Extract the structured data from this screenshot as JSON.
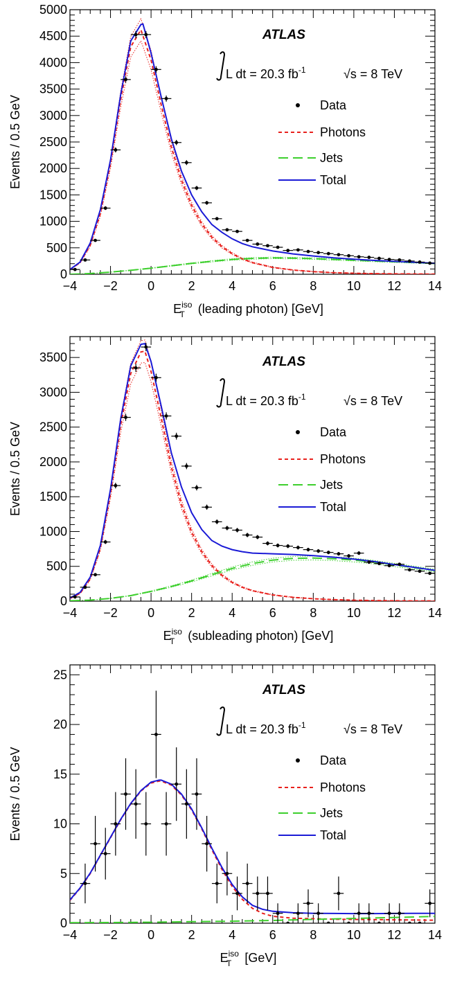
{
  "chart_data": [
    {
      "type": "line",
      "xlabel": "(leading photon) [GeV]",
      "xlabel_symbol": "E",
      "xlabel_sup": "iso",
      "xlabel_sub": "T",
      "ylabel": "Events / 0.5 GeV",
      "xlim": [
        -4,
        14
      ],
      "ylim": [
        0,
        5000
      ],
      "xticks": [
        "−4",
        "−2",
        "0",
        "2",
        "4",
        "6",
        "8",
        "10",
        "12",
        "14"
      ],
      "yticks": [
        "0",
        "500",
        "1000",
        "1500",
        "2000",
        "2500",
        "3000",
        "3500",
        "4000",
        "4500",
        "5000"
      ],
      "ytick_values": [
        0,
        500,
        1000,
        1500,
        2000,
        2500,
        3000,
        3500,
        4000,
        4500,
        5000
      ],
      "annotation": {
        "experiment": "ATLAS",
        "lumi": "L dt = 20.3 fb",
        "lumi_sup": "-1",
        "energy": "√s = 8 TeV"
      },
      "legend": [
        {
          "label": "Data",
          "style": "marker"
        },
        {
          "label": "Photons",
          "style": "short-dash",
          "color": "#e8201c"
        },
        {
          "label": "Jets",
          "style": "long-dash",
          "color": "#3ccf2c"
        },
        {
          "label": "Total",
          "style": "solid",
          "color": "#1a1ad6"
        }
      ],
      "legend_position": "top-right",
      "series": [
        {
          "name": "Data",
          "x": [
            -3.75,
            -3.25,
            -2.75,
            -2.25,
            -1.75,
            -1.25,
            -0.75,
            -0.25,
            0.25,
            0.75,
            1.25,
            1.75,
            2.25,
            2.75,
            3.25,
            3.75,
            4.25,
            4.75,
            5.25,
            5.75,
            6.25,
            6.75,
            7.25,
            7.75,
            8.25,
            8.75,
            9.25,
            9.75,
            10.25,
            10.75,
            11.25,
            11.75,
            12.25,
            12.75,
            13.25,
            13.75
          ],
          "y": [
            90,
            270,
            640,
            1250,
            2350,
            3680,
            4530,
            4530,
            3870,
            3320,
            2490,
            2110,
            1630,
            1350,
            1050,
            840,
            810,
            640,
            570,
            540,
            510,
            450,
            460,
            430,
            410,
            390,
            370,
            350,
            330,
            320,
            300,
            280,
            270,
            250,
            230,
            210
          ],
          "yerr": [
            10,
            16,
            25,
            35,
            48,
            60,
            67,
            67,
            62,
            58,
            50,
            46,
            40,
            37,
            32,
            29,
            28,
            25,
            24,
            23,
            23,
            21,
            21,
            21,
            20,
            20,
            19,
            19,
            18,
            18,
            17,
            17,
            16,
            16,
            15,
            15
          ]
        },
        {
          "name": "Photons",
          "x": [
            -4,
            -3.5,
            -3,
            -2.5,
            -2,
            -1.5,
            -1,
            -0.5,
            0,
            0.5,
            1,
            1.5,
            2,
            2.5,
            3,
            3.5,
            4,
            4.5,
            5,
            6,
            7,
            8,
            9,
            10,
            11,
            12,
            13,
            14
          ],
          "y": [
            90,
            220,
            550,
            1150,
            2100,
            3300,
            4300,
            4620,
            4050,
            3200,
            2400,
            1780,
            1300,
            950,
            700,
            520,
            390,
            290,
            220,
            130,
            80,
            50,
            30,
            20,
            12,
            8,
            5,
            3
          ]
        },
        {
          "name": "Jets",
          "x": [
            -4,
            -3,
            -2,
            -1,
            0,
            1,
            2,
            3,
            4,
            5,
            6,
            7,
            8,
            9,
            10,
            11,
            12,
            13,
            14
          ],
          "y": [
            0,
            15,
            40,
            75,
            115,
            160,
            205,
            245,
            280,
            300,
            310,
            305,
            295,
            280,
            265,
            250,
            235,
            220,
            205
          ]
        },
        {
          "name": "Total",
          "x": [
            -4,
            -3.5,
            -3,
            -2.5,
            -2,
            -1.5,
            -1,
            -0.5,
            -0.4,
            0,
            0.5,
            1,
            1.5,
            2,
            2.5,
            3,
            3.5,
            4,
            4.5,
            5,
            6,
            7,
            8,
            9,
            10,
            11,
            12,
            13,
            14
          ],
          "y": [
            90,
            230,
            590,
            1220,
            2160,
            3390,
            4410,
            4720,
            4730,
            4180,
            3350,
            2560,
            1950,
            1500,
            1180,
            940,
            790,
            670,
            580,
            520,
            440,
            385,
            345,
            310,
            285,
            262,
            243,
            225,
            208
          ]
        }
      ]
    },
    {
      "type": "line",
      "xlabel": "(subleading photon) [GeV]",
      "xlabel_symbol": "E",
      "xlabel_sup": "iso",
      "xlabel_sub": "T",
      "ylabel": "Events / 0.5 GeV",
      "xlim": [
        -4,
        14
      ],
      "ylim": [
        0,
        3800
      ],
      "xticks": [
        "−4",
        "−2",
        "0",
        "2",
        "4",
        "6",
        "8",
        "10",
        "12",
        "14"
      ],
      "yticks": [
        "0",
        "500",
        "1000",
        "1500",
        "2000",
        "2500",
        "3000",
        "3500"
      ],
      "ytick_values": [
        0,
        500,
        1000,
        1500,
        2000,
        2500,
        3000,
        3500
      ],
      "annotation": {
        "experiment": "ATLAS",
        "lumi": "L dt = 20.3 fb",
        "lumi_sup": "-1",
        "energy": "√s = 8 TeV"
      },
      "legend": [
        {
          "label": "Data",
          "style": "marker"
        },
        {
          "label": "Photons",
          "style": "short-dash",
          "color": "#e8201c"
        },
        {
          "label": "Jets",
          "style": "long-dash",
          "color": "#3ccf2c"
        },
        {
          "label": "Total",
          "style": "solid",
          "color": "#1a1ad6"
        }
      ],
      "legend_position": "top-right",
      "series": [
        {
          "name": "Data",
          "x": [
            -3.75,
            -3.25,
            -2.75,
            -2.25,
            -1.75,
            -1.25,
            -0.75,
            -0.25,
            0.25,
            0.75,
            1.25,
            1.75,
            2.25,
            2.75,
            3.25,
            3.75,
            4.25,
            4.75,
            5.25,
            5.75,
            6.25,
            6.75,
            7.25,
            7.75,
            8.25,
            8.75,
            9.25,
            9.75,
            10.25,
            10.75,
            11.25,
            11.75,
            12.25,
            12.75,
            13.25,
            13.75
          ],
          "y": [
            60,
            200,
            380,
            850,
            1660,
            2640,
            3350,
            3650,
            3210,
            2660,
            2370,
            1940,
            1630,
            1350,
            1140,
            1050,
            1020,
            950,
            920,
            830,
            800,
            790,
            770,
            740,
            720,
            700,
            680,
            650,
            690,
            560,
            540,
            510,
            530,
            450,
            430,
            400
          ],
          "yerr": [
            8,
            14,
            20,
            29,
            41,
            51,
            58,
            60,
            57,
            52,
            49,
            44,
            40,
            37,
            34,
            32,
            32,
            31,
            30,
            29,
            28,
            28,
            28,
            27,
            27,
            26,
            26,
            25,
            26,
            24,
            23,
            23,
            23,
            21,
            21,
            20
          ]
        },
        {
          "name": "Photons",
          "x": [
            -4,
            -3.5,
            -3,
            -2.5,
            -2,
            -1.5,
            -1,
            -0.5,
            -0.3,
            0,
            0.5,
            1,
            1.5,
            2,
            2.5,
            3,
            3.5,
            4,
            4.5,
            5,
            6,
            7,
            8,
            9,
            10,
            11,
            12,
            13,
            14
          ],
          "y": [
            40,
            110,
            320,
            760,
            1550,
            2530,
            3270,
            3580,
            3590,
            3300,
            2630,
            1930,
            1390,
            990,
            710,
            510,
            370,
            270,
            200,
            150,
            90,
            55,
            35,
            22,
            14,
            9,
            6,
            4,
            3
          ]
        },
        {
          "name": "Jets",
          "x": [
            -4,
            -3,
            -2,
            -1,
            0,
            1,
            2,
            3,
            4,
            5,
            6,
            7,
            8,
            9,
            10,
            11,
            12,
            13,
            14
          ],
          "y": [
            5,
            15,
            40,
            80,
            140,
            210,
            290,
            380,
            470,
            540,
            590,
            615,
            620,
            610,
            590,
            560,
            520,
            480,
            440
          ]
        },
        {
          "name": "Total",
          "x": [
            -4,
            -3.5,
            -3,
            -2.5,
            -2,
            -1.5,
            -1,
            -0.5,
            -0.3,
            0,
            0.5,
            1,
            1.5,
            2,
            2.5,
            3,
            3.5,
            4,
            4.5,
            5,
            6,
            7,
            8,
            9,
            10,
            11,
            12,
            13,
            14
          ],
          "y": [
            45,
            125,
            345,
            800,
            1610,
            2610,
            3380,
            3690,
            3700,
            3440,
            2800,
            2130,
            1640,
            1270,
            1030,
            870,
            790,
            740,
            710,
            690,
            680,
            670,
            655,
            632,
            604,
            569,
            526,
            484,
            443
          ]
        }
      ]
    },
    {
      "type": "line",
      "xlabel": "[GeV]",
      "xlabel_symbol": "E",
      "xlabel_sup": "iso",
      "xlabel_sub": "T",
      "ylabel": "Events / 0.5 GeV",
      "xlim": [
        -4,
        14
      ],
      "ylim": [
        0,
        26
      ],
      "xticks": [
        "−4",
        "−2",
        "0",
        "2",
        "4",
        "6",
        "8",
        "10",
        "12",
        "14"
      ],
      "yticks": [
        "0",
        "5",
        "10",
        "15",
        "20",
        "25"
      ],
      "ytick_values": [
        0,
        5,
        10,
        15,
        20,
        25
      ],
      "annotation": {
        "experiment": "ATLAS",
        "lumi": "L dt = 20.3 fb",
        "lumi_sup": "-1",
        "energy": "√s = 8 TeV"
      },
      "legend": [
        {
          "label": "Data",
          "style": "marker"
        },
        {
          "label": "Photons",
          "style": "short-dash",
          "color": "#e8201c"
        },
        {
          "label": "Jets",
          "style": "long-dash",
          "color": "#3ccf2c"
        },
        {
          "label": "Total",
          "style": "solid",
          "color": "#1a1ad6"
        }
      ],
      "legend_position": "top-right",
      "series": [
        {
          "name": "Data",
          "x": [
            -3.25,
            -2.75,
            -2.25,
            -1.75,
            -1.25,
            -0.75,
            -0.25,
            0.25,
            0.75,
            1.25,
            1.75,
            2.25,
            2.75,
            3.25,
            3.75,
            4.25,
            4.75,
            5.25,
            5.75,
            6.25,
            6.75,
            7.25,
            7.75,
            8.25,
            8.75,
            9.25,
            9.75,
            10.25,
            10.75,
            11.25,
            11.75,
            12.25,
            12.75,
            13.25,
            13.75
          ],
          "y": [
            4,
            8,
            7,
            10,
            13,
            12,
            10,
            19,
            10,
            14,
            12,
            13,
            8,
            4,
            5,
            3,
            4,
            3,
            3,
            1,
            0,
            1,
            2,
            1,
            0,
            3,
            0,
            1,
            1,
            0,
            1,
            1,
            0,
            0,
            2
          ],
          "yerr": [
            2,
            2.8,
            2.6,
            3.2,
            3.6,
            3.5,
            3.2,
            4.4,
            3.2,
            3.7,
            3.5,
            3.6,
            2.8,
            2,
            2.2,
            1.7,
            2,
            1.7,
            1.7,
            1,
            0,
            1,
            1.4,
            1,
            0,
            1.7,
            0,
            1,
            1,
            0,
            1,
            1,
            0,
            0,
            1.4
          ]
        },
        {
          "name": "Photons",
          "x": [
            -4,
            -3.5,
            -3,
            -2.5,
            -2,
            -1.5,
            -1,
            -0.5,
            0,
            0.4,
            0.5,
            1,
            1.5,
            2,
            2.5,
            3,
            3.5,
            4,
            4.5,
            5,
            5.5,
            6,
            7,
            8,
            9,
            10,
            11,
            12,
            13,
            14
          ],
          "y": [
            2.3,
            3.5,
            5.0,
            6.8,
            8.6,
            10.4,
            12.0,
            13.3,
            14.1,
            14.3,
            14.3,
            13.9,
            12.9,
            11.4,
            9.5,
            7.4,
            5.4,
            3.7,
            2.4,
            1.5,
            1.0,
            0.7,
            0.5,
            0.45,
            0.4,
            0.38,
            0.36,
            0.34,
            0.32,
            0.3
          ]
        },
        {
          "name": "Jets",
          "x": [
            -4,
            -2,
            0,
            2,
            4,
            6,
            8,
            10,
            12,
            14
          ],
          "y": [
            0.05,
            0.07,
            0.1,
            0.15,
            0.2,
            0.28,
            0.38,
            0.48,
            0.58,
            0.68
          ]
        },
        {
          "name": "Total",
          "x": [
            -4,
            -3.5,
            -3,
            -2.5,
            -2,
            -1.5,
            -1,
            -0.5,
            0,
            0.4,
            0.5,
            1,
            1.5,
            2,
            2.5,
            3,
            3.5,
            4,
            4.5,
            5,
            5.5,
            6,
            7,
            8,
            9,
            10,
            11,
            12,
            13,
            14
          ],
          "y": [
            2.35,
            3.55,
            5.05,
            6.85,
            8.65,
            10.45,
            12.05,
            13.35,
            14.2,
            14.4,
            14.4,
            14.0,
            13.0,
            11.5,
            9.6,
            7.55,
            5.6,
            3.9,
            2.65,
            1.8,
            1.4,
            1.2,
            1.05,
            1.0,
            0.98,
            0.97,
            0.97,
            0.98,
            1.0,
            1.0
          ]
        }
      ]
    }
  ]
}
